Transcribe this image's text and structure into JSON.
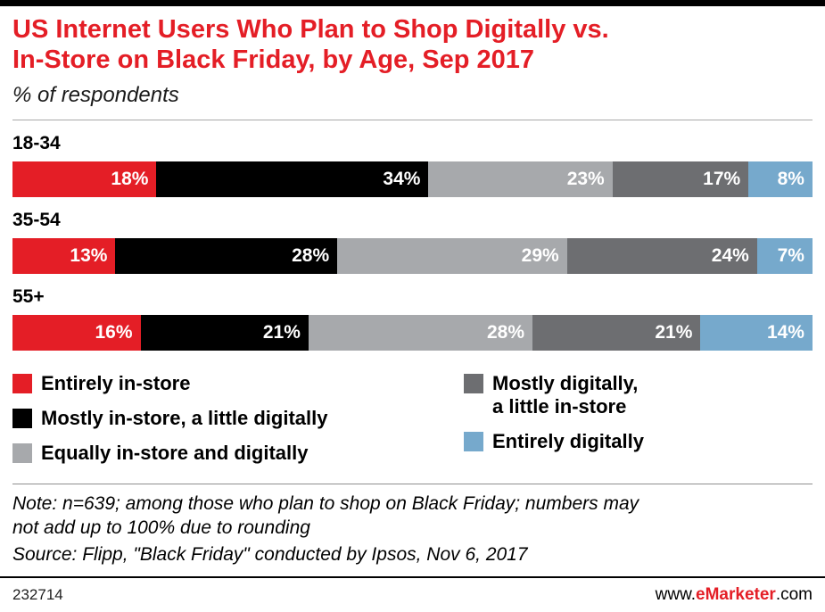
{
  "colors": {
    "accent_red": "#e41e26",
    "black": "#000000",
    "gray_light": "#a7a9ac",
    "gray_dark": "#6d6e71",
    "blue": "#76a9cc"
  },
  "header": {
    "title_lines": [
      "US Internet Users Who Plan to Shop Digitally vs.",
      "In-Store on Black Friday, by Age, Sep 2017"
    ],
    "subtitle": "% of respondents"
  },
  "chart_data": {
    "type": "bar",
    "stacked": true,
    "orientation": "horizontal",
    "title": "US Internet Users Who Plan to Shop Digitally vs. In-Store on Black Friday, by Age, Sep 2017",
    "subtitle": "% of respondents",
    "value_suffix": "%",
    "x_range": [
      0,
      100
    ],
    "legend_position": "bottom",
    "categories": [
      "18-34",
      "35-54",
      "55+"
    ],
    "series": [
      {
        "name": "Entirely in-store",
        "color": "#e41e26",
        "values": [
          18,
          13,
          16
        ]
      },
      {
        "name": "Mostly in-store, a little digitally",
        "color": "#000000",
        "values": [
          34,
          28,
          21
        ]
      },
      {
        "name": "Equally in-store and digitally",
        "color": "#a7a9ac",
        "values": [
          23,
          29,
          28
        ]
      },
      {
        "name": "Mostly digitally, a little in-store",
        "color": "#6d6e71",
        "values": [
          17,
          24,
          21
        ]
      },
      {
        "name": "Entirely digitally",
        "color": "#76a9cc",
        "values": [
          8,
          7,
          14
        ]
      }
    ]
  },
  "legend": {
    "columns": [
      [
        {
          "color": "#e41e26",
          "lines": [
            "Entirely in-store"
          ]
        },
        {
          "color": "#000000",
          "lines": [
            "Mostly in-store, a little digitally"
          ]
        },
        {
          "color": "#a7a9ac",
          "lines": [
            "Equally in-store and digitally"
          ]
        }
      ],
      [
        {
          "color": "#6d6e71",
          "lines": [
            "Mostly digitally,",
            "a little in-store"
          ]
        },
        {
          "color": "#76a9cc",
          "lines": [
            "Entirely digitally"
          ]
        }
      ]
    ]
  },
  "notes": {
    "note_lines": [
      "Note: n=639; among those who plan to shop on Black Friday; numbers may",
      "not add up to 100% due to rounding"
    ],
    "source": "Source: Flipp, \"Black Friday\" conducted by Ipsos, Nov 6, 2017"
  },
  "footer": {
    "chart_id": "232714",
    "site_prefix": "www.",
    "site_brand": "eMarketer",
    "site_suffix": ".com"
  }
}
